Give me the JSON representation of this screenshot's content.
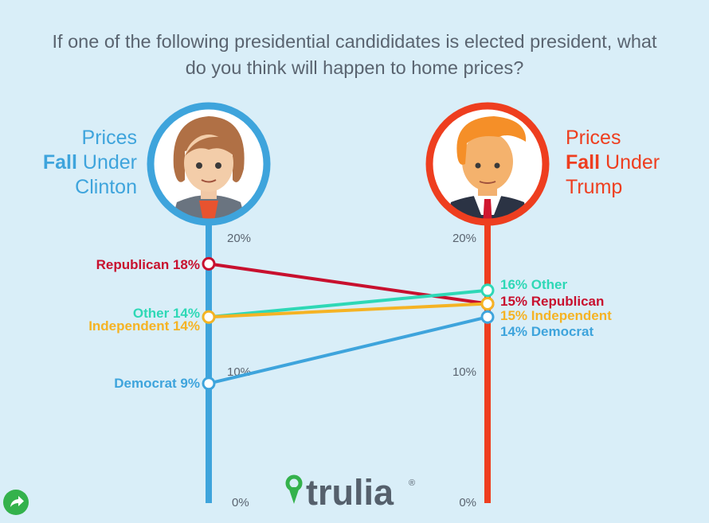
{
  "question": "If one of the following presidential candididates is elected president, what do you think will happen to home prices?",
  "headings": {
    "clinton": {
      "line1": "Prices",
      "line2_bold": "Fall",
      "line2_rest": "Under",
      "line3": "Clinton"
    },
    "trump": {
      "line1": "Prices",
      "line2_bold": "Fall",
      "line2_rest": "Under",
      "line3": "Trump"
    }
  },
  "logo_text": "trulia",
  "logo_mark": "®",
  "colors": {
    "clinton_axis": "#3ea4dc",
    "trump_axis": "#ee3e1f",
    "republican": "#c8102e",
    "other": "#2ed8b6",
    "independent": "#f5b324",
    "democrat": "#3ea4dc",
    "axis_ticks": "#5a6470",
    "logo": "#55606c",
    "logo_pin": "#34b24c"
  },
  "icons": {
    "share": "share-arrow-icon",
    "logo_pin": "location-pin-icon"
  },
  "chart_data": {
    "type": "slope",
    "axes": [
      {
        "name": "Clinton",
        "ticks": [
          {
            "value": 20,
            "label": "20%"
          },
          {
            "value": 10,
            "label": "10%"
          },
          {
            "value": 0,
            "label": "0%"
          }
        ]
      },
      {
        "name": "Trump",
        "ticks": [
          {
            "value": 20,
            "label": "20%"
          },
          {
            "value": 10,
            "label": "10%"
          },
          {
            "value": 0,
            "label": "0%"
          }
        ]
      }
    ],
    "ylim": [
      0,
      20
    ],
    "series": [
      {
        "name": "Republican",
        "color": "#c8102e",
        "values": [
          18,
          15
        ],
        "label_left": "Republican 18%",
        "label_right": "15% Republican"
      },
      {
        "name": "Other",
        "color": "#2ed8b6",
        "values": [
          14,
          16
        ],
        "label_left": "Other 14%",
        "label_right": "16% Other"
      },
      {
        "name": "Independent",
        "color": "#f5b324",
        "values": [
          14,
          15
        ],
        "label_left": "Independent 14%",
        "label_right": "15% Independent"
      },
      {
        "name": "Democrat",
        "color": "#3ea4dc",
        "values": [
          9,
          14
        ],
        "label_left": "Democrat 9%",
        "label_right": "14% Democrat"
      }
    ]
  }
}
